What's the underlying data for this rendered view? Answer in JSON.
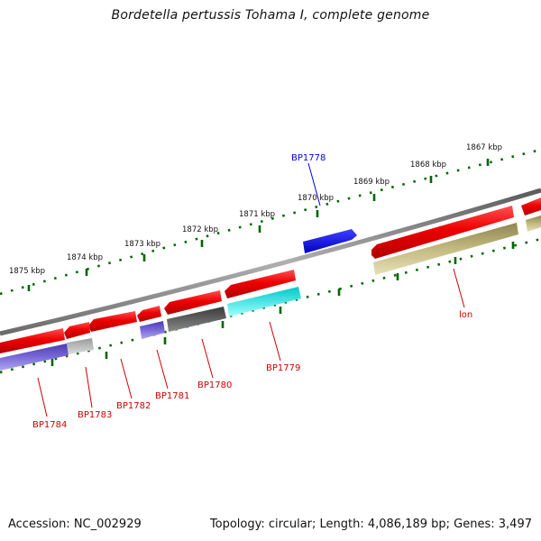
{
  "header": {
    "title": "Bordetella pertussis Tohama I, complete genome"
  },
  "footer": {
    "accession": "Accession: NC_002929",
    "summary": "Topology: circular; Length: 4,086,189 bp; Genes: 3,497"
  },
  "scale": {
    "ticks": [
      "1875 kbp",
      "1874 kbp",
      "1873 kbp",
      "1872 kbp",
      "1871 kbp",
      "1870 kbp",
      "1869 kbp",
      "1868 kbp",
      "1867 kbp"
    ]
  },
  "genes": [
    {
      "label": "BP1778",
      "color": "#0000dd"
    },
    {
      "label": "lon",
      "color": "#cc0000"
    },
    {
      "label": "BP1779",
      "color": "#cc0000"
    },
    {
      "label": "BP1780",
      "color": "#cc0000"
    },
    {
      "label": "BP1781",
      "color": "#cc0000"
    },
    {
      "label": "BP1782",
      "color": "#cc0000"
    },
    {
      "label": "BP1783",
      "color": "#cc0000"
    },
    {
      "label": "BP1784",
      "color": "#cc0000"
    }
  ],
  "colors": {
    "backbone": "#888888",
    "tick_green": "#006600",
    "cds_red": "#ee0000",
    "blue": "#0000ee",
    "olive": "#b8b070",
    "slate": "#6a5acd",
    "silver": "#b8b8b8",
    "dark_gray": "#555555",
    "cyan": "#00e8e8"
  }
}
